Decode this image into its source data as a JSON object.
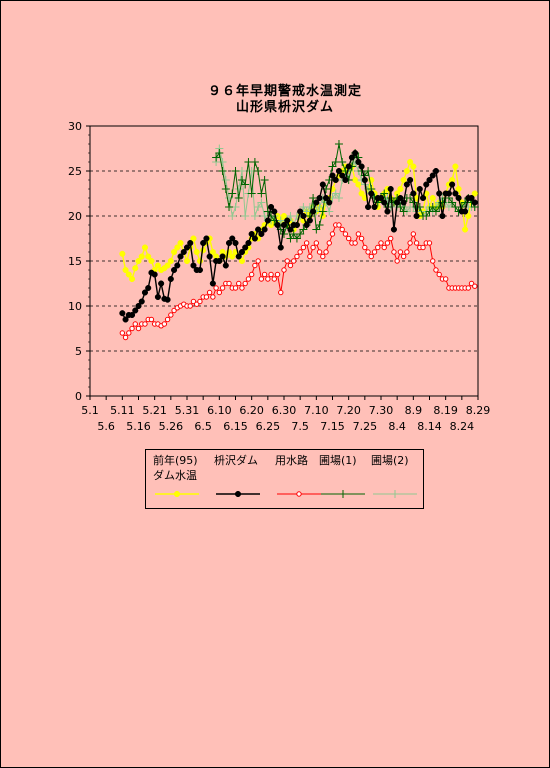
{
  "title": "９６年早期警戒水温測定",
  "subtitle": "山形県枡沢ダム",
  "chart_data": {
    "type": "line",
    "title": "９６年早期警戒水温測定",
    "subtitle": "山形県枡沢ダム",
    "ylim": [
      0,
      30
    ],
    "yticks": [
      "0",
      "5",
      "10",
      "15",
      "20",
      "25",
      "30"
    ],
    "grid": "dashed horizontal at 5, 10, 15, 20, 25",
    "xticks_top": [
      "5.1",
      "5.11",
      "5.21",
      "5.31",
      "6.10",
      "6.20",
      "6.30",
      "7.10",
      "7.20",
      "7.30",
      "8.9",
      "8.19",
      "8.29"
    ],
    "xticks_bottom": [
      "5.6",
      "5.16",
      "5.26",
      "6.5",
      "6.15",
      "6.25",
      "7.5",
      "7.15",
      "7.25",
      "8.4",
      "8.14",
      "8.24"
    ],
    "x_day_range": [
      1,
      121
    ],
    "series": [
      {
        "name": "前年(95) ダム水温",
        "color": "#ffff00",
        "marker": "dot",
        "x": [
          11,
          12,
          13,
          14,
          15,
          16,
          17,
          18,
          19,
          20,
          21,
          22,
          23,
          24,
          25,
          26,
          27,
          28,
          29,
          30,
          31,
          32,
          33,
          34,
          35,
          36,
          37,
          38,
          39,
          40,
          41,
          42,
          43,
          44,
          45,
          46,
          47,
          48,
          49,
          50,
          51,
          52,
          53,
          54,
          55,
          56,
          57,
          58,
          59,
          60,
          61,
          62,
          63,
          64,
          65,
          66,
          67,
          68,
          69,
          70,
          71,
          72,
          73,
          74,
          75,
          76,
          77,
          78,
          79,
          80,
          81,
          82,
          83,
          84,
          85,
          86,
          87,
          88,
          89,
          90,
          91,
          92,
          93,
          94,
          95,
          96,
          97,
          98,
          99,
          100,
          101,
          102,
          103,
          104,
          105,
          106,
          107,
          108,
          109,
          110,
          111,
          112,
          113,
          114,
          115,
          116,
          117,
          118,
          119,
          120
        ],
        "values": [
          15.8,
          14,
          13.5,
          13,
          14.2,
          15,
          15.5,
          16.5,
          15.5,
          15,
          14,
          14.5,
          14,
          14.2,
          14.5,
          15,
          16,
          16.5,
          17,
          16,
          15,
          16.5,
          17.5,
          16,
          15,
          16.2,
          17,
          17.5,
          16,
          15.5,
          15,
          16,
          15.5,
          16,
          15.5,
          16,
          15.5,
          15,
          16,
          16.5,
          17.5,
          18,
          17.5,
          18.5,
          19,
          19.5,
          19,
          19.5,
          20,
          19.5,
          20,
          19,
          19.5,
          18.5,
          19,
          20,
          19.5,
          20.5,
          20,
          21,
          20.5,
          21,
          20,
          21.5,
          22,
          23,
          24,
          24.5,
          25,
          25.5,
          25,
          25.5,
          24,
          23.5,
          22.5,
          22,
          23,
          24,
          22.5,
          21,
          22,
          22.5,
          23,
          22,
          21.5,
          22.5,
          23,
          24,
          25,
          26,
          25.5,
          22,
          20,
          20.5,
          22.5,
          21,
          22,
          21,
          21.5,
          21,
          22.5,
          23.5,
          24,
          25.5,
          23,
          21.5,
          18.5,
          20,
          22,
          22.5
        ]
      },
      {
        "name": "枡沢ダム",
        "color": "#000000",
        "marker": "dot",
        "x": [
          11,
          12,
          13,
          14,
          15,
          16,
          17,
          18,
          19,
          20,
          21,
          22,
          23,
          24,
          25,
          26,
          27,
          28,
          29,
          30,
          31,
          32,
          33,
          34,
          35,
          36,
          37,
          38,
          39,
          40,
          41,
          42,
          43,
          44,
          45,
          46,
          47,
          48,
          49,
          50,
          51,
          52,
          53,
          54,
          55,
          56,
          57,
          58,
          59,
          60,
          61,
          62,
          63,
          64,
          65,
          66,
          67,
          68,
          69,
          70,
          71,
          72,
          73,
          74,
          75,
          76,
          77,
          78,
          79,
          80,
          81,
          82,
          83,
          84,
          85,
          86,
          87,
          88,
          89,
          90,
          91,
          92,
          93,
          94,
          95,
          96,
          97,
          98,
          99,
          100,
          101,
          102,
          103,
          104,
          105,
          106,
          107,
          108,
          109,
          110,
          111,
          112,
          113,
          114,
          115,
          116,
          117,
          118,
          119,
          120
        ],
        "values": [
          9.2,
          8.5,
          9,
          9,
          9.5,
          10,
          10.5,
          11.5,
          12,
          13.7,
          13.5,
          11,
          12.5,
          10.8,
          10.7,
          13,
          14,
          14.5,
          15.5,
          16,
          16.5,
          17,
          14.5,
          14,
          14,
          17,
          17.5,
          15.5,
          12.5,
          15,
          15,
          15.5,
          14.5,
          17,
          17.5,
          17,
          15.5,
          16,
          16.5,
          17,
          18,
          17.5,
          18.5,
          18,
          18.5,
          19.5,
          21,
          20.5,
          19,
          16.5,
          19,
          19.5,
          18.5,
          19,
          19,
          20.5,
          20,
          19,
          19.5,
          20.5,
          21.5,
          22,
          23.5,
          22,
          21.5,
          24.5,
          24,
          25,
          24.5,
          24,
          25.5,
          26.5,
          27,
          26,
          25.5,
          24,
          21,
          22.5,
          21,
          22,
          22,
          21.5,
          20.5,
          23,
          18.5,
          21.5,
          22,
          21.5,
          23.5,
          24,
          22.5,
          20,
          23,
          22,
          23.5,
          24,
          24.5,
          25,
          22.5,
          20,
          22.5,
          22.5,
          23.5,
          22.5,
          22,
          20.5,
          20.5,
          22,
          22,
          21.5
        ]
      },
      {
        "name": "用水路",
        "color": "#ff0000",
        "marker": "circle",
        "x": [
          11,
          12,
          13,
          14,
          15,
          16,
          17,
          18,
          19,
          20,
          21,
          22,
          23,
          24,
          25,
          26,
          27,
          28,
          29,
          30,
          31,
          32,
          33,
          34,
          35,
          36,
          37,
          38,
          39,
          40,
          41,
          42,
          43,
          44,
          45,
          46,
          47,
          48,
          49,
          50,
          51,
          52,
          53,
          54,
          55,
          56,
          57,
          58,
          59,
          60,
          61,
          62,
          63,
          64,
          65,
          66,
          67,
          68,
          69,
          70,
          71,
          72,
          73,
          74,
          75,
          76,
          77,
          78,
          79,
          80,
          81,
          82,
          83,
          84,
          85,
          86,
          87,
          88,
          89,
          90,
          91,
          92,
          93,
          94,
          95,
          96,
          97,
          98,
          99,
          100,
          101,
          102,
          103,
          104,
          105,
          106,
          107,
          108,
          109,
          110,
          111,
          112,
          113,
          114,
          115,
          116,
          117,
          118,
          119,
          120
        ],
        "values": [
          7,
          6.5,
          7,
          7.5,
          8,
          7.5,
          8,
          8,
          8.5,
          8.5,
          8,
          8,
          7.8,
          8,
          8.5,
          9,
          9.5,
          9.8,
          10,
          10.2,
          10,
          10,
          10.5,
          10.2,
          10.5,
          11,
          11,
          11.5,
          11,
          12,
          11.5,
          12,
          12.5,
          12.5,
          12,
          12,
          12.5,
          12,
          12.5,
          13,
          13.5,
          14.5,
          15,
          13,
          13.5,
          13,
          13.5,
          13,
          13.5,
          11.5,
          14,
          15,
          14.5,
          15,
          15.5,
          16,
          16.5,
          17,
          15.5,
          16.5,
          17,
          16,
          15.5,
          16,
          17,
          18,
          19,
          19,
          18.5,
          18,
          17.5,
          17,
          17,
          18,
          17.5,
          16.5,
          16,
          15.5,
          16,
          16.5,
          17,
          16.5,
          17,
          17.5,
          16,
          15,
          16,
          15.5,
          16,
          17,
          18,
          17,
          16.5,
          16.5,
          17,
          17,
          15,
          14,
          13.5,
          13,
          13,
          12,
          12,
          12,
          12,
          12,
          12,
          12,
          12.5,
          12.2
        ]
      },
      {
        "name": "圃場(1)",
        "color": "#006400",
        "marker": "plus",
        "x": [
          40,
          41,
          42,
          43,
          44,
          45,
          46,
          47,
          48,
          49,
          50,
          51,
          52,
          53,
          54,
          55,
          56,
          57,
          58,
          59,
          60,
          61,
          62,
          63,
          64,
          65,
          66,
          67,
          68,
          69,
          70,
          71,
          72,
          73,
          74,
          75,
          76,
          77,
          78,
          79,
          80,
          81,
          82,
          83,
          84,
          85,
          86,
          87,
          88,
          89,
          90,
          91,
          92,
          93,
          94,
          95,
          96,
          97,
          98,
          99,
          100,
          101,
          102,
          103,
          104,
          105,
          106,
          107,
          108,
          109,
          110,
          111,
          112,
          113,
          114,
          115,
          116,
          117,
          118,
          119,
          120
        ],
        "values": [
          26.5,
          27,
          25,
          23,
          21,
          22.5,
          25,
          22,
          24,
          23.5,
          26,
          22.5,
          26,
          25,
          22.5,
          24,
          20.5,
          20,
          19.5,
          19,
          18.5,
          18,
          19,
          17.5,
          18,
          17.5,
          18,
          18.5,
          19,
          20,
          22,
          18.5,
          19,
          20.5,
          23,
          24,
          25.5,
          26,
          28,
          26,
          25,
          24,
          25.5,
          27,
          26.5,
          25,
          24.5,
          25,
          23,
          22,
          21.5,
          22,
          22.5,
          21,
          22,
          21.5,
          22,
          21,
          20.5,
          22,
          22,
          21.5,
          21,
          21,
          20,
          20,
          20.5,
          21,
          20.5,
          21,
          21.5,
          22,
          22,
          21.5,
          21,
          20.5,
          21,
          21.5,
          22,
          21.5,
          21
        ]
      },
      {
        "name": "圃場(2)",
        "color": "#90c890",
        "marker": "plus",
        "x": [
          40,
          41,
          42,
          43,
          44,
          45,
          46,
          47,
          48,
          49,
          50,
          51,
          52,
          53,
          54,
          55,
          56,
          57,
          58,
          59,
          60,
          61,
          62,
          63,
          64,
          65,
          66,
          67,
          68,
          69,
          70,
          71,
          72,
          73,
          74,
          75,
          76,
          77,
          78,
          79,
          80,
          81,
          82,
          83,
          84,
          85,
          86,
          87,
          88,
          89,
          90,
          91,
          92,
          93,
          94,
          95,
          96,
          97,
          98,
          99,
          100,
          101,
          102,
          103,
          104,
          105,
          106,
          107,
          108,
          109,
          110,
          111,
          112,
          113,
          114,
          115,
          116,
          117,
          118,
          119,
          120
        ],
        "values": [
          26,
          27.5,
          26,
          24,
          22,
          20,
          21,
          23,
          25,
          20,
          22.5,
          25,
          20,
          21,
          21.5,
          20,
          19.5,
          19.5,
          20,
          19,
          19.5,
          19,
          19.5,
          20,
          19,
          20,
          20,
          21,
          20.5,
          21,
          21,
          20.5,
          21,
          22,
          21.5,
          20.5,
          22,
          22.5,
          22,
          24,
          24.5,
          25,
          25.5,
          26,
          25,
          24,
          23.5,
          23,
          22.5,
          22,
          21.5,
          22,
          21.5,
          22,
          21,
          21.5,
          21,
          21.5,
          21,
          20.5,
          21,
          21,
          20.5,
          21,
          20,
          20.5,
          21,
          20.5,
          21,
          21.5,
          22,
          21.5,
          21,
          21.5,
          21,
          20.5,
          21,
          21.5,
          21,
          21,
          21
        ]
      }
    ]
  },
  "legend": {
    "entries": [
      {
        "label": "前年(95)",
        "label2": "ダム水温",
        "color": "#ffff00",
        "marker": "dot"
      },
      {
        "label": "枡沢ダム",
        "label2": "",
        "color": "#000000",
        "marker": "dot"
      },
      {
        "label": "用水路",
        "label2": "",
        "color": "#ff0000",
        "marker": "circle"
      },
      {
        "label": "圃場(1)",
        "label2": "",
        "color": "#006400",
        "marker": "plus"
      },
      {
        "label": "圃場(2)",
        "label2": "",
        "color": "#90c890",
        "marker": "plus"
      }
    ]
  }
}
